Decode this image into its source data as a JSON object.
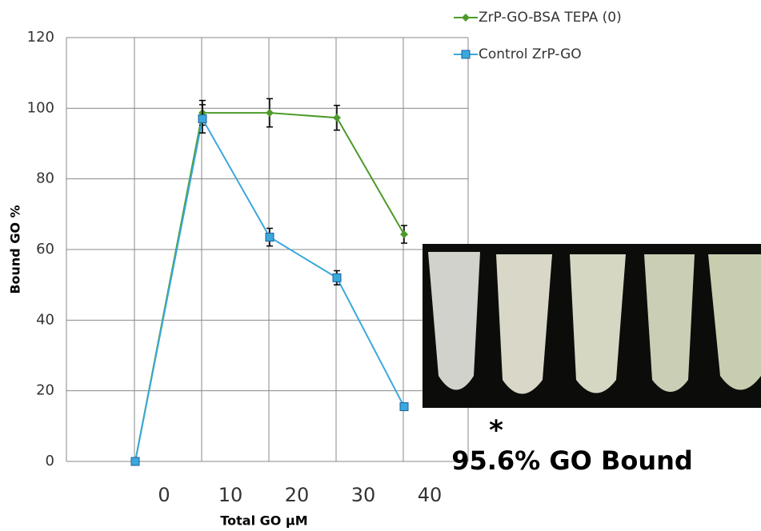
{
  "chart_data": {
    "type": "line",
    "y_label": "Bound GO %",
    "x_label": "Total GO µM",
    "categories": [
      "0",
      "10",
      "20",
      "30",
      "40"
    ],
    "series": [
      {
        "name": "ZrP-GO-BSA TEPA (0)",
        "color": "#4d9a2a",
        "marker": "diamond",
        "values": [
          0,
          98.7,
          98.7,
          97.3,
          64.3
        ],
        "errors": [
          0,
          3.5,
          4,
          3.5,
          2.5
        ]
      },
      {
        "name": "Control ZrP-GO",
        "color": "#3aa8dc",
        "marker": "square",
        "values": [
          0,
          97,
          63.5,
          52,
          15.5
        ],
        "errors": [
          0,
          4,
          2.5,
          2,
          0
        ]
      }
    ],
    "ylim": [
      0,
      120
    ],
    "yticks": [
      0,
      20,
      40,
      60,
      80,
      100,
      120
    ],
    "grid": true,
    "annotations": [
      "*",
      "95.6% GO Bound"
    ]
  }
}
